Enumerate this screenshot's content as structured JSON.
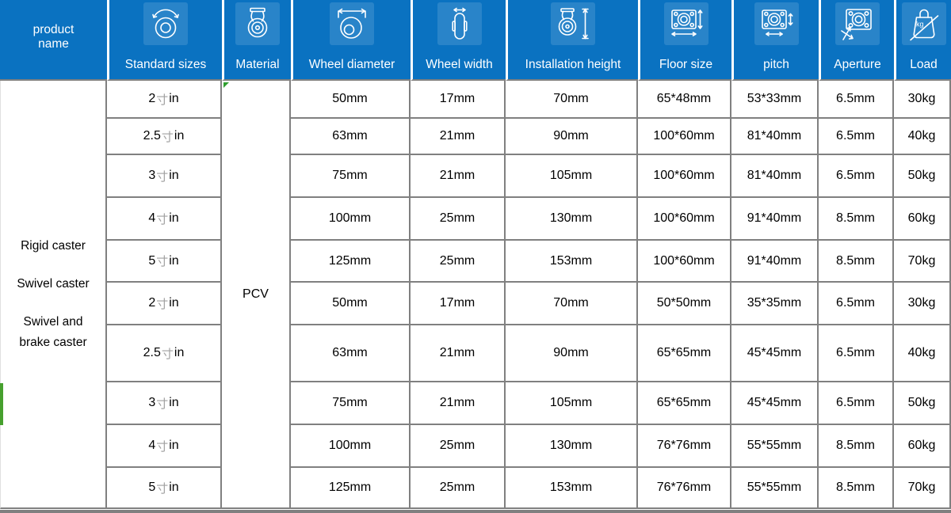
{
  "table": {
    "columns": [
      {
        "id": "product_name",
        "label": "product name",
        "icon": null
      },
      {
        "id": "standard_sizes",
        "label": "Standard sizes",
        "icon": "standard-sizes-icon"
      },
      {
        "id": "material",
        "label": "Material",
        "icon": "material-icon"
      },
      {
        "id": "wheel_diameter",
        "label": "Wheel diameter",
        "icon": "wheel-diameter-icon"
      },
      {
        "id": "wheel_width",
        "label": "Wheel width",
        "icon": "wheel-width-icon"
      },
      {
        "id": "installation_height",
        "label": "Installation height",
        "icon": "installation-height-icon"
      },
      {
        "id": "floor_size",
        "label": "Floor size",
        "icon": "floor-size-icon"
      },
      {
        "id": "pitch",
        "label": "pitch",
        "icon": "pitch-icon"
      },
      {
        "id": "aperture",
        "label": "Aperture",
        "icon": "aperture-icon"
      },
      {
        "id": "load",
        "label": "Load",
        "icon": "load-icon"
      }
    ],
    "product_name_lines": [
      "Rigid caster",
      "Swivel caster",
      "Swivel and brake caster"
    ],
    "material_value": "PCV",
    "load_icon_text": "kg",
    "rows": [
      {
        "standard_size": "2寸in",
        "wheel_diameter": "50mm",
        "wheel_width": "17mm",
        "installation_height": "70mm",
        "floor_size": "65*48mm",
        "pitch": "53*33mm",
        "aperture": "6.5mm",
        "load": "30kg"
      },
      {
        "standard_size": "2.5寸in",
        "wheel_diameter": "63mm",
        "wheel_width": "21mm",
        "installation_height": "90mm",
        "floor_size": "100*60mm",
        "pitch": "81*40mm",
        "aperture": "6.5mm",
        "load": "40kg"
      },
      {
        "standard_size": "3寸in",
        "wheel_diameter": "75mm",
        "wheel_width": "21mm",
        "installation_height": "105mm",
        "floor_size": "100*60mm",
        "pitch": "81*40mm",
        "aperture": "6.5mm",
        "load": "50kg"
      },
      {
        "standard_size": "4寸in",
        "wheel_diameter": "100mm",
        "wheel_width": "25mm",
        "installation_height": "130mm",
        "floor_size": "100*60mm",
        "pitch": "91*40mm",
        "aperture": "8.5mm",
        "load": "60kg"
      },
      {
        "standard_size": "5寸in",
        "wheel_diameter": "125mm",
        "wheel_width": "25mm",
        "installation_height": "153mm",
        "floor_size": "100*60mm",
        "pitch": "91*40mm",
        "aperture": "8.5mm",
        "load": "70kg"
      },
      {
        "standard_size": "2寸in",
        "wheel_diameter": "50mm",
        "wheel_width": "17mm",
        "installation_height": "70mm",
        "floor_size": "50*50mm",
        "pitch": "35*35mm",
        "aperture": "6.5mm",
        "load": "30kg"
      },
      {
        "standard_size": "2.5寸in",
        "wheel_diameter": "63mm",
        "wheel_width": "21mm",
        "installation_height": "90mm",
        "floor_size": "65*65mm",
        "pitch": "45*45mm",
        "aperture": "6.5mm",
        "load": "40kg"
      },
      {
        "standard_size": "3寸in",
        "wheel_diameter": "75mm",
        "wheel_width": "21mm",
        "installation_height": "105mm",
        "floor_size": "65*65mm",
        "pitch": "45*45mm",
        "aperture": "6.5mm",
        "load": "50kg"
      },
      {
        "standard_size": "4寸in",
        "wheel_diameter": "100mm",
        "wheel_width": "25mm",
        "installation_height": "130mm",
        "floor_size": "76*76mm",
        "pitch": "55*55mm",
        "aperture": "8.5mm",
        "load": "60kg"
      },
      {
        "standard_size": "5寸in",
        "wheel_diameter": "125mm",
        "wheel_width": "25mm",
        "installation_height": "153mm",
        "floor_size": "76*76mm",
        "pitch": "55*55mm",
        "aperture": "8.5mm",
        "load": "70kg"
      }
    ]
  },
  "colors": {
    "header_blue": "#0a72c1",
    "border_gray": "#808080",
    "marker_green": "#2f9e2f",
    "strip_green": "#46a02e",
    "unit_gray": "#a0a0a0"
  }
}
